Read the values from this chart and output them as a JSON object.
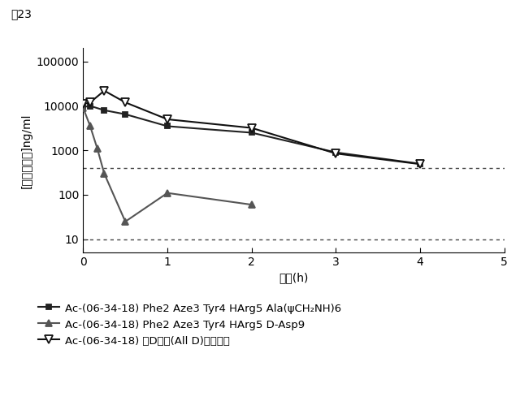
{
  "title": "図23",
  "xlabel": "時間(h)",
  "ylabel": "[バイシクル]ng/ml",
  "xlim": [
    0,
    5
  ],
  "ylim_log": [
    5,
    200000
  ],
  "hline1": 400,
  "hline2": 10,
  "series": [
    {
      "label": "Ac-(06-34-18) Phe2 Aze3 Tyr4 HArg5 Ala(ψCH₂NH)6",
      "x": [
        0,
        0.083,
        0.25,
        0.5,
        1,
        2,
        3,
        4
      ],
      "y": [
        9500,
        10000,
        8000,
        6500,
        3500,
        2500,
        900,
        500
      ],
      "color": "#222222",
      "marker": "s",
      "marker_filled": true,
      "linewidth": 1.5,
      "markersize": 5
    },
    {
      "label": "Ac-(06-34-18) Phe2 Aze3 Tyr4 HArg5 D-Asp9",
      "x": [
        0,
        0.083,
        0.167,
        0.25,
        0.5,
        1,
        2
      ],
      "y": [
        9000,
        3500,
        1100,
        300,
        25,
        110,
        60
      ],
      "color": "#555555",
      "marker": "^",
      "marker_filled": true,
      "linewidth": 1.5,
      "markersize": 6
    },
    {
      "label": "Ac-(06-34-18) 全D型の(All D)アミノ酸",
      "x": [
        0,
        0.083,
        0.25,
        0.5,
        1,
        2,
        3,
        4
      ],
      "y": [
        11000,
        12000,
        22000,
        12000,
        5000,
        3200,
        850,
        490
      ],
      "color": "#111111",
      "marker": "v",
      "marker_filled": false,
      "linewidth": 1.5,
      "markersize": 7
    }
  ],
  "yticks": [
    10,
    100,
    1000,
    10000,
    100000
  ],
  "ytick_labels": [
    "10",
    "100",
    "1000",
    "10000",
    "100000"
  ],
  "xticks": [
    0,
    1,
    2,
    3,
    4,
    5
  ],
  "background_color": "#ffffff",
  "legend_fontsize": 9.5,
  "axis_fontsize": 10,
  "title_fontsize": 10
}
